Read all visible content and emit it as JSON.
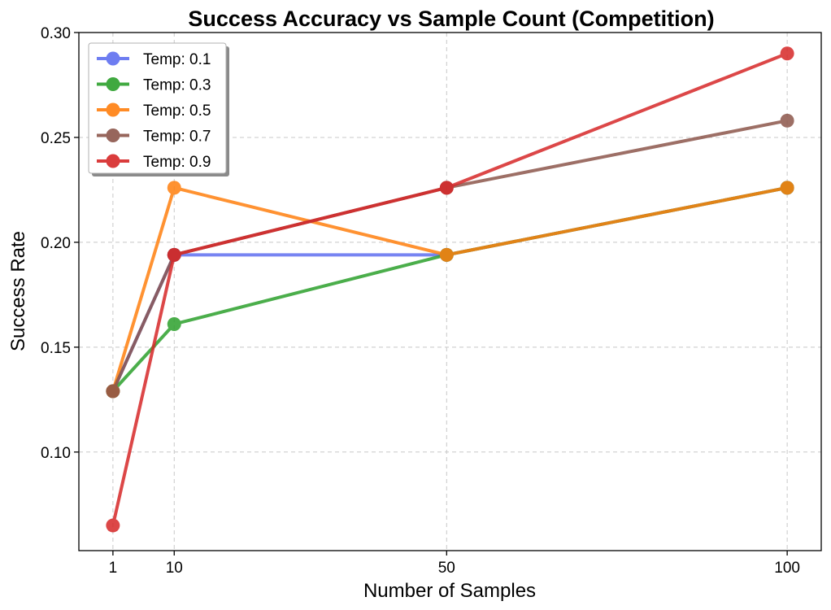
{
  "chart_data": {
    "type": "line",
    "title": "Success Accuracy vs Sample Count (Competition)",
    "xlabel": "Number of Samples",
    "ylabel": "Success Rate",
    "x": [
      1,
      10,
      50,
      100
    ],
    "xticks": [
      "1",
      "10",
      "50",
      "100"
    ],
    "xlim": [
      -4,
      105
    ],
    "ylim": [
      0.053,
      0.3
    ],
    "yticks": [
      "0.10",
      "0.15",
      "0.20",
      "0.25",
      "0.30"
    ],
    "ytick_values": [
      0.1,
      0.15,
      0.2,
      0.25,
      0.3
    ],
    "grid": true,
    "legend_position": "top-left",
    "series": [
      {
        "name": "Temp: 0.1",
        "color": "#5f6ff0",
        "values": [
          0.129,
          0.194,
          0.194,
          0.226
        ]
      },
      {
        "name": "Temp: 0.3",
        "color": "#2ca02c",
        "values": [
          0.129,
          0.161,
          0.194,
          0.226
        ]
      },
      {
        "name": "Temp: 0.5",
        "color": "#ff7f0e",
        "values": [
          0.129,
          0.226,
          0.194,
          0.226
        ]
      },
      {
        "name": "Temp: 0.7",
        "color": "#8c564b",
        "values": [
          0.129,
          0.194,
          0.226,
          0.258
        ]
      },
      {
        "name": "Temp: 0.9",
        "color": "#d62728",
        "values": [
          0.065,
          0.194,
          0.226,
          0.29
        ]
      }
    ]
  }
}
